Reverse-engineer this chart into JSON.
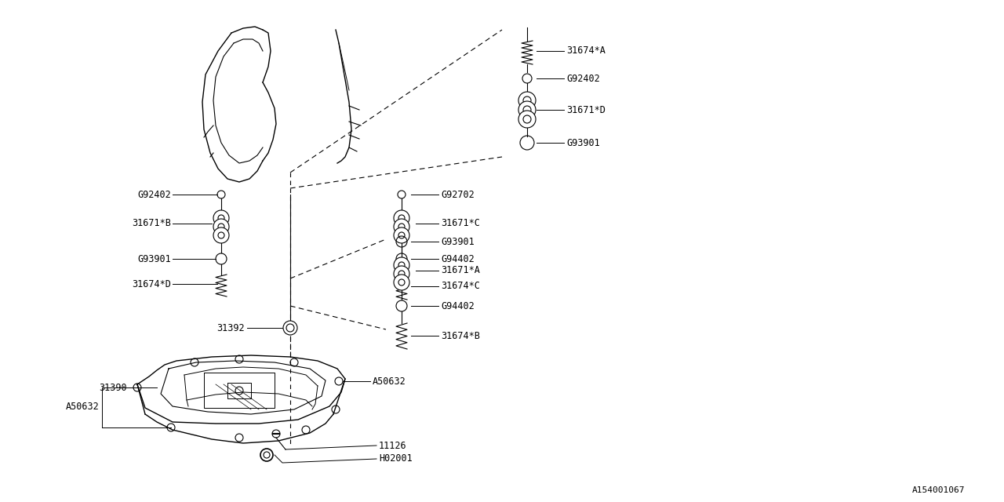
{
  "bg_color": "#ffffff",
  "line_color": "#000000",
  "text_color": "#000000",
  "font_size": 8.5,
  "diagram_id": "A154001067",
  "figsize": [
    12.8,
    6.4
  ],
  "dpi": 100,
  "xlim": [
    0,
    1280
  ],
  "ylim": [
    0,
    640
  ]
}
